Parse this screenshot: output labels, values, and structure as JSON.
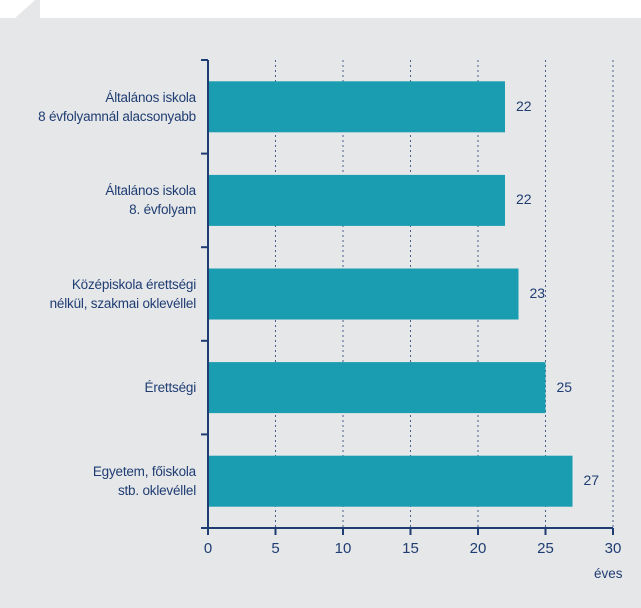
{
  "colors": {
    "background": "#ffffff",
    "panel": "#e6e7e8",
    "bar": "#1a9db0",
    "axis": "#1f3d73",
    "gridline": "#1f3d73",
    "text": "#1f3d73"
  },
  "chart_data": {
    "type": "bar",
    "orientation": "horizontal",
    "categories": [
      [
        "Általános iskola",
        "8 évfolyamnál alacsonyabb"
      ],
      [
        "Általános iskola",
        "8. évfolyam"
      ],
      [
        "Középiskola érettségi",
        "nélkül, szakmai oklevéllel"
      ],
      [
        "Érettségi"
      ],
      [
        "Egyetem, főiskola",
        "stb. oklevéllel"
      ]
    ],
    "values": [
      22,
      22,
      23,
      25,
      27
    ],
    "value_labels": [
      "22",
      "22",
      "23",
      "25",
      "27"
    ],
    "xlim": [
      0,
      30
    ],
    "xticks": [
      "0",
      "5",
      "10",
      "15",
      "20",
      "25",
      "30"
    ],
    "xunit": "éves",
    "grid": "vertical dashed",
    "legend": "none"
  }
}
